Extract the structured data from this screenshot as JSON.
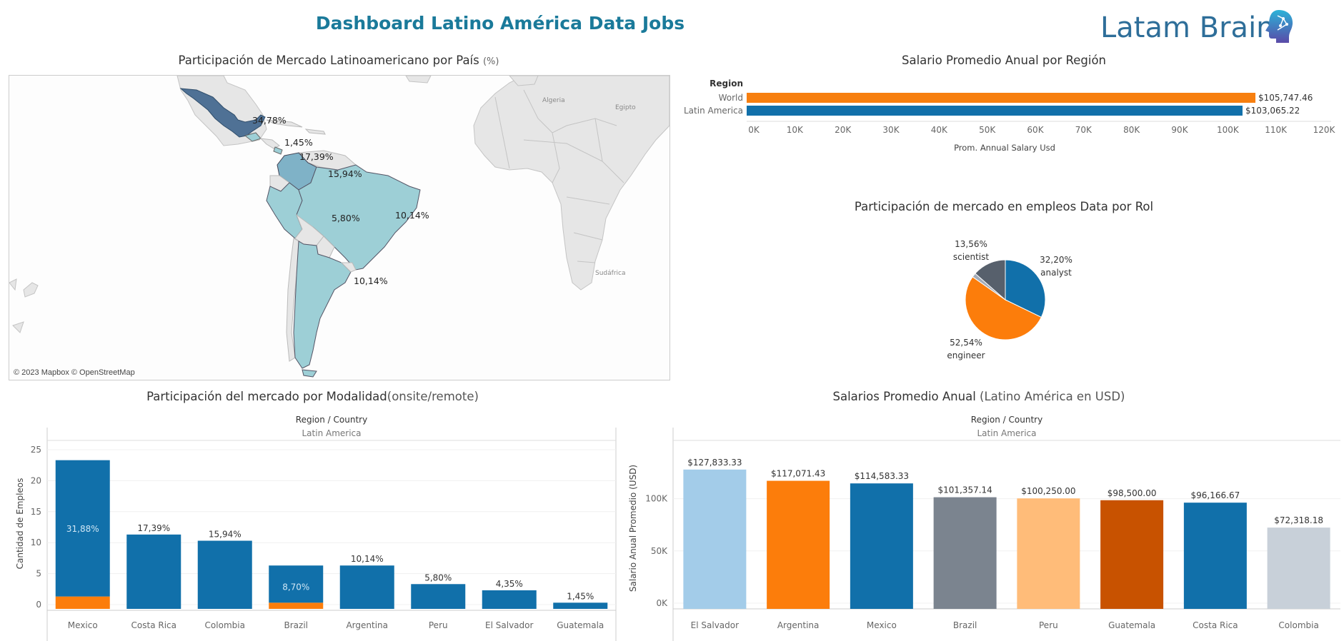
{
  "header": {
    "title": "Dashboard Latino América Data Jobs",
    "logo_text": "Latam Brain"
  },
  "map_section": {
    "title": "Participación de Mercado Latinoamericano por País",
    "title_suffix": "(%)",
    "credit": "© 2023 Mapbox © OpenStreetMap",
    "place_labels": [
      "Algeria",
      "Egipto",
      "Sudáfrica"
    ],
    "labels": [
      {
        "text": "34,78%",
        "country": "Mexico"
      },
      {
        "text": "1,45%",
        "country": "Guatemala"
      },
      {
        "text": "17,39%",
        "country": "Costa Rica"
      },
      {
        "text": "15,94%",
        "country": "Colombia"
      },
      {
        "text": "5,80%",
        "country": "Peru"
      },
      {
        "text": "10,14%",
        "country": "Brazil"
      },
      {
        "text": "10,14%",
        "country": "Argentina"
      }
    ],
    "colors": {
      "mexico": "#4f7195",
      "colombia": "#7fb2c7",
      "others": "#9dcfd6",
      "land": "#e6e6e6",
      "border": "#bbbbbb"
    }
  },
  "region_salary": {
    "title": "Salario Promedio Anual por Región",
    "chart_data": {
      "type": "bar",
      "orientation": "horizontal",
      "axis_title_rows": "Region",
      "categories": [
        "World",
        "Latin America"
      ],
      "values": [
        105747.46,
        103065.22
      ],
      "value_labels": [
        "$105,747.46",
        "$103,065.22"
      ],
      "colors": [
        "#f77f0f",
        "#1170aa"
      ],
      "xlabel": "Prom. Annual Salary Usd",
      "xlim": [
        0,
        120000
      ],
      "ticks": [
        "0K",
        "10K",
        "20K",
        "30K",
        "40K",
        "50K",
        "60K",
        "70K",
        "80K",
        "90K",
        "100K",
        "110K",
        "120K"
      ]
    }
  },
  "role_share": {
    "title": "Participación de mercado en empleos Data por Rol",
    "chart_data": {
      "type": "pie",
      "slices": [
        {
          "name": "analyst",
          "percent_label": "32,20%",
          "value": 32.2,
          "color": "#1170aa"
        },
        {
          "name": "engineer",
          "percent_label": "52,54%",
          "value": 52.54,
          "color": "#fc7d0b"
        },
        {
          "name": "",
          "percent_label": "",
          "value": 1.7,
          "color": "#a3acb9"
        },
        {
          "name": "scientist",
          "percent_label": "13,56%",
          "value": 13.56,
          "color": "#57606c"
        }
      ]
    }
  },
  "modality": {
    "title": "Participación del mercado por Modalidad",
    "title_suffix": "(onsite/remote)",
    "chart_data": {
      "type": "bar",
      "stacked": true,
      "header": "Region  /  Country",
      "subheader": "Latin America",
      "ylabel": "Cantidad de Empleos",
      "ylim": [
        0,
        25
      ],
      "yticks": [
        0,
        5,
        10,
        15,
        20,
        25
      ],
      "categories": [
        "Mexico",
        "Costa Rica",
        "Colombia",
        "Brazil",
        "Argentina",
        "Peru",
        "El Salvador",
        "Guatemala"
      ],
      "series": [
        {
          "values": [
            22,
            12,
            11,
            6,
            7,
            4,
            3,
            1
          ],
          "color": "#1170aa"
        },
        {
          "values": [
            2,
            0,
            0,
            1,
            0,
            0,
            0,
            0
          ],
          "color": "#fc7d0b"
        }
      ],
      "labels": [
        "31,88%",
        "17,39%",
        "15,94%",
        "8,70%",
        "10,14%",
        "5,80%",
        "4,35%",
        "1,45%"
      ],
      "label_inside": [
        true,
        false,
        false,
        true,
        false,
        false,
        false,
        false
      ]
    }
  },
  "salary_country": {
    "title": "Salarios Promedio Anual",
    "title_suffix": "(Latino América en USD)",
    "chart_data": {
      "type": "bar",
      "header": "Region  /  Country",
      "subheader": "Latin America",
      "ylabel": "Salario Anual Promedio (USD)",
      "ylim": [
        0,
        140000
      ],
      "yticks": [
        0,
        50000,
        100000
      ],
      "ytick_labels": [
        "0K",
        "50K",
        "100K"
      ],
      "categories": [
        "El Salvador",
        "Argentina",
        "Mexico",
        "Brazil",
        "Peru",
        "Guatemala",
        "Costa Rica",
        "Colombia"
      ],
      "values": [
        127833.33,
        117071.43,
        114583.33,
        101357.14,
        100250.0,
        98500.0,
        96166.67,
        72318.18
      ],
      "value_labels": [
        "$127,833.33",
        "$117,071.43",
        "$114,583.33",
        "$101,357.14",
        "$100,250.00",
        "$98,500.00",
        "$96,166.67",
        "$72,318.18"
      ],
      "colors": [
        "#a3cce9",
        "#fc7d0b",
        "#1170aa",
        "#7b848f",
        "#ffbc79",
        "#c85200",
        "#1170aa",
        "#c8d0d9"
      ]
    }
  }
}
